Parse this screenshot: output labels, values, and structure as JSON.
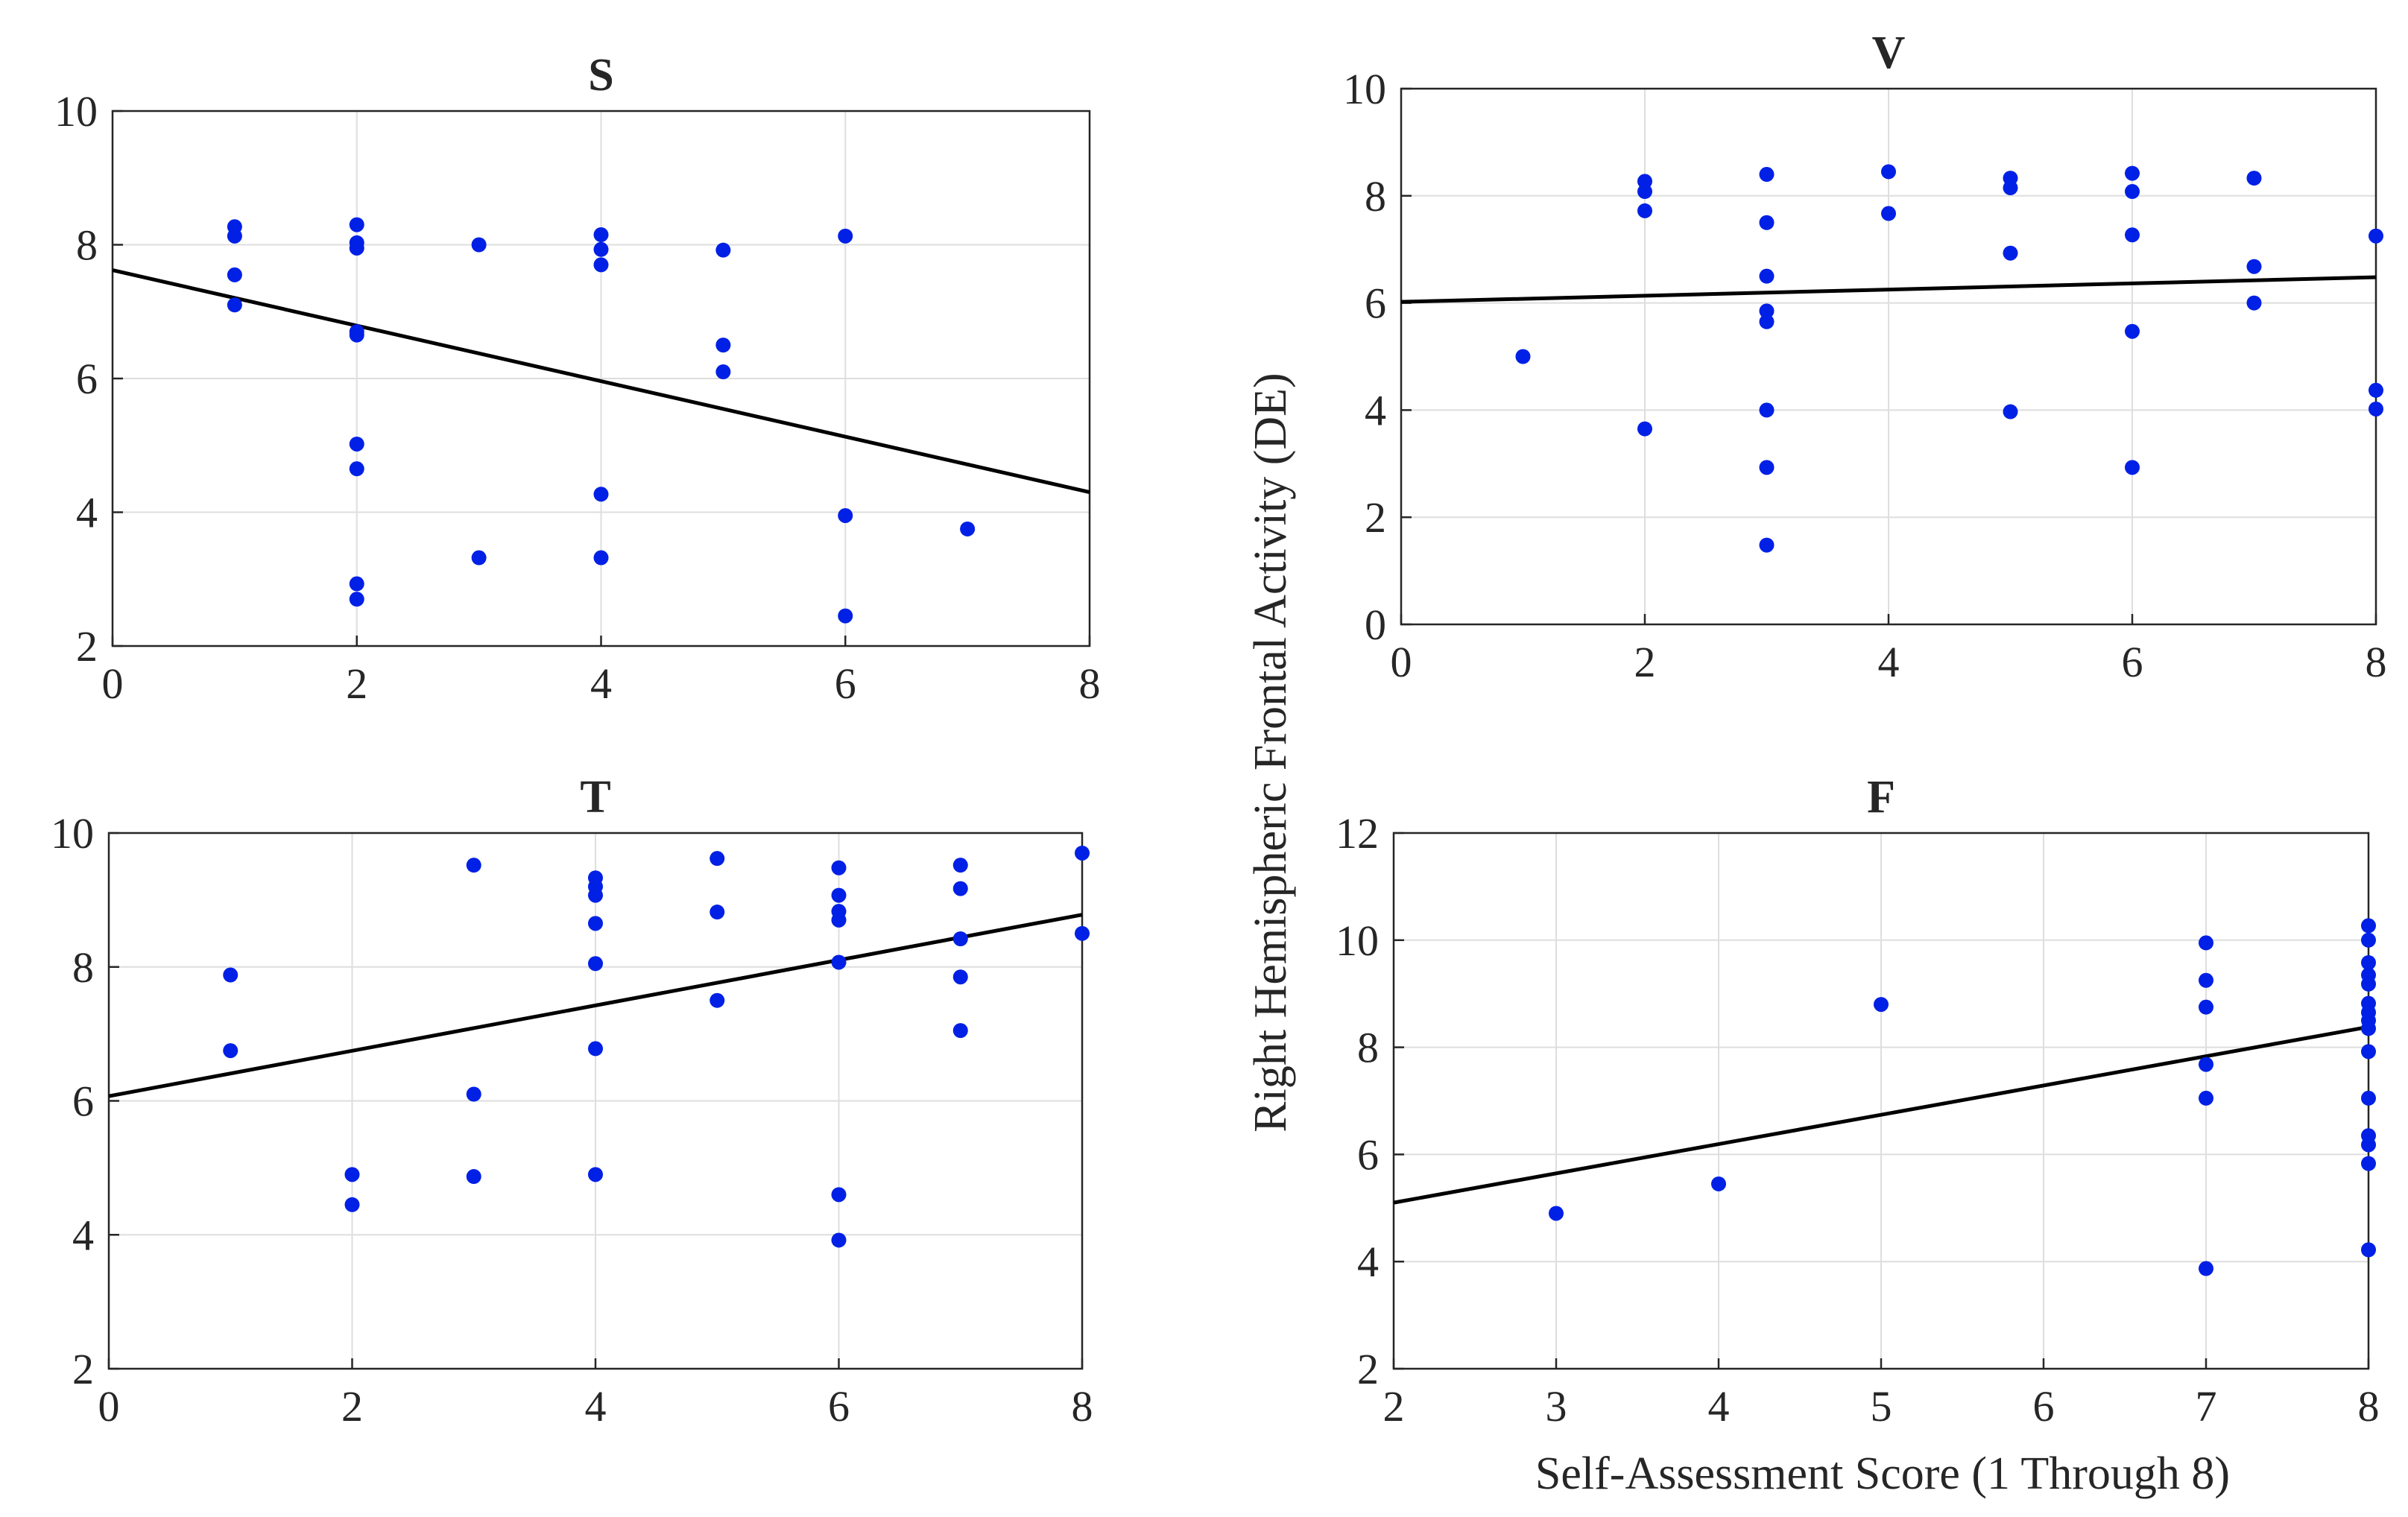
{
  "figure": {
    "shared_ylabel": "Right Hemispheric Frontal Activity (DE)",
    "shared_xlabel": "Self-Assessment Score (1 Through 8)"
  },
  "colors": {
    "markers": "#0020e6",
    "trendline": "#000000",
    "grid": "#dedede",
    "axes": "#262626"
  },
  "chart_data": [
    {
      "type": "scatter",
      "title": "S",
      "xlim": [
        0,
        8
      ],
      "ylim": [
        2,
        10
      ],
      "xticks": [
        0,
        2,
        4,
        6,
        8
      ],
      "yticks": [
        2,
        4,
        6,
        8,
        10
      ],
      "grid": true,
      "points": [
        [
          1,
          8.27
        ],
        [
          1,
          8.13
        ],
        [
          1,
          7.55
        ],
        [
          1,
          7.1
        ],
        [
          2,
          8.3
        ],
        [
          2,
          8.03
        ],
        [
          2,
          7.95
        ],
        [
          2,
          6.7
        ],
        [
          2,
          6.65
        ],
        [
          2,
          5.02
        ],
        [
          2,
          4.65
        ],
        [
          2,
          2.93
        ],
        [
          2,
          2.7
        ],
        [
          3,
          8.0
        ],
        [
          3,
          3.32
        ],
        [
          4,
          8.15
        ],
        [
          4,
          7.93
        ],
        [
          4,
          7.7
        ],
        [
          4,
          4.27
        ],
        [
          4,
          3.32
        ],
        [
          5,
          7.92
        ],
        [
          5,
          6.5
        ],
        [
          5,
          6.1
        ],
        [
          6,
          8.13
        ],
        [
          6,
          3.95
        ],
        [
          6,
          2.45
        ],
        [
          7,
          3.75
        ]
      ],
      "trendline": {
        "x": [
          0,
          8
        ],
        "y": [
          7.62,
          4.3
        ]
      }
    },
    {
      "type": "scatter",
      "title": "V",
      "xlim": [
        0,
        8
      ],
      "ylim": [
        0,
        10
      ],
      "xticks": [
        0,
        2,
        4,
        6,
        8
      ],
      "yticks": [
        0,
        2,
        4,
        6,
        8,
        10
      ],
      "grid": true,
      "points": [
        [
          1,
          5.0
        ],
        [
          2,
          8.27
        ],
        [
          2,
          8.08
        ],
        [
          2,
          7.72
        ],
        [
          2,
          3.65
        ],
        [
          3,
          8.4
        ],
        [
          3,
          7.5
        ],
        [
          3,
          6.5
        ],
        [
          3,
          5.85
        ],
        [
          3,
          5.65
        ],
        [
          3,
          4.0
        ],
        [
          3,
          2.93
        ],
        [
          3,
          1.48
        ],
        [
          4,
          8.45
        ],
        [
          4,
          7.67
        ],
        [
          5,
          8.33
        ],
        [
          5,
          8.15
        ],
        [
          5,
          6.93
        ],
        [
          5,
          3.97
        ],
        [
          6,
          8.42
        ],
        [
          6,
          8.08
        ],
        [
          6,
          7.27
        ],
        [
          6,
          5.47
        ],
        [
          6,
          2.93
        ],
        [
          7,
          8.33
        ],
        [
          7,
          6.68
        ],
        [
          7,
          6.0
        ],
        [
          8,
          7.25
        ],
        [
          8,
          4.37
        ],
        [
          8,
          4.02
        ]
      ],
      "trendline": {
        "x": [
          0,
          8
        ],
        "y": [
          6.02,
          6.48
        ]
      }
    },
    {
      "type": "scatter",
      "title": "T",
      "xlim": [
        0,
        8
      ],
      "ylim": [
        2,
        10
      ],
      "xticks": [
        0,
        2,
        4,
        6,
        8
      ],
      "yticks": [
        2,
        4,
        6,
        8,
        10
      ],
      "grid": true,
      "points": [
        [
          1,
          7.88
        ],
        [
          1,
          6.75
        ],
        [
          2,
          4.9
        ],
        [
          2,
          4.45
        ],
        [
          3,
          9.52
        ],
        [
          3,
          6.1
        ],
        [
          3,
          4.87
        ],
        [
          4,
          9.33
        ],
        [
          4,
          9.2
        ],
        [
          4,
          9.07
        ],
        [
          4,
          8.65
        ],
        [
          4,
          8.05
        ],
        [
          4,
          6.78
        ],
        [
          4,
          4.9
        ],
        [
          5,
          9.62
        ],
        [
          5,
          8.82
        ],
        [
          5,
          7.5
        ],
        [
          6,
          9.48
        ],
        [
          6,
          9.07
        ],
        [
          6,
          8.83
        ],
        [
          6,
          8.7
        ],
        [
          6,
          8.07
        ],
        [
          6,
          4.6
        ],
        [
          6,
          3.92
        ],
        [
          7,
          9.52
        ],
        [
          7,
          9.17
        ],
        [
          7,
          8.42
        ],
        [
          7,
          7.85
        ],
        [
          7,
          7.05
        ],
        [
          8,
          9.7
        ],
        [
          8,
          8.5
        ]
      ],
      "trendline": {
        "x": [
          0,
          8
        ],
        "y": [
          6.07,
          8.78
        ]
      }
    },
    {
      "type": "scatter",
      "title": "F",
      "xlim": [
        2,
        8
      ],
      "ylim": [
        2,
        12
      ],
      "xticks": [
        2,
        3,
        4,
        5,
        6,
        7,
        8
      ],
      "yticks": [
        2,
        4,
        6,
        8,
        10,
        12
      ],
      "grid": true,
      "points": [
        [
          3,
          4.9
        ],
        [
          4,
          5.45
        ],
        [
          5,
          8.8
        ],
        [
          7,
          9.95
        ],
        [
          7,
          9.25
        ],
        [
          7,
          8.75
        ],
        [
          7,
          7.68
        ],
        [
          7,
          7.05
        ],
        [
          7,
          3.87
        ],
        [
          8,
          10.27
        ],
        [
          8,
          10.0
        ],
        [
          8,
          9.58
        ],
        [
          8,
          9.35
        ],
        [
          8,
          9.18
        ],
        [
          8,
          8.82
        ],
        [
          8,
          8.65
        ],
        [
          8,
          8.5
        ],
        [
          8,
          8.35
        ],
        [
          8,
          7.92
        ],
        [
          8,
          7.05
        ],
        [
          8,
          6.35
        ],
        [
          8,
          6.18
        ],
        [
          8,
          5.83
        ],
        [
          8,
          4.22
        ]
      ],
      "trendline": {
        "x": [
          2,
          8
        ],
        "y": [
          5.1,
          8.38
        ]
      }
    }
  ]
}
